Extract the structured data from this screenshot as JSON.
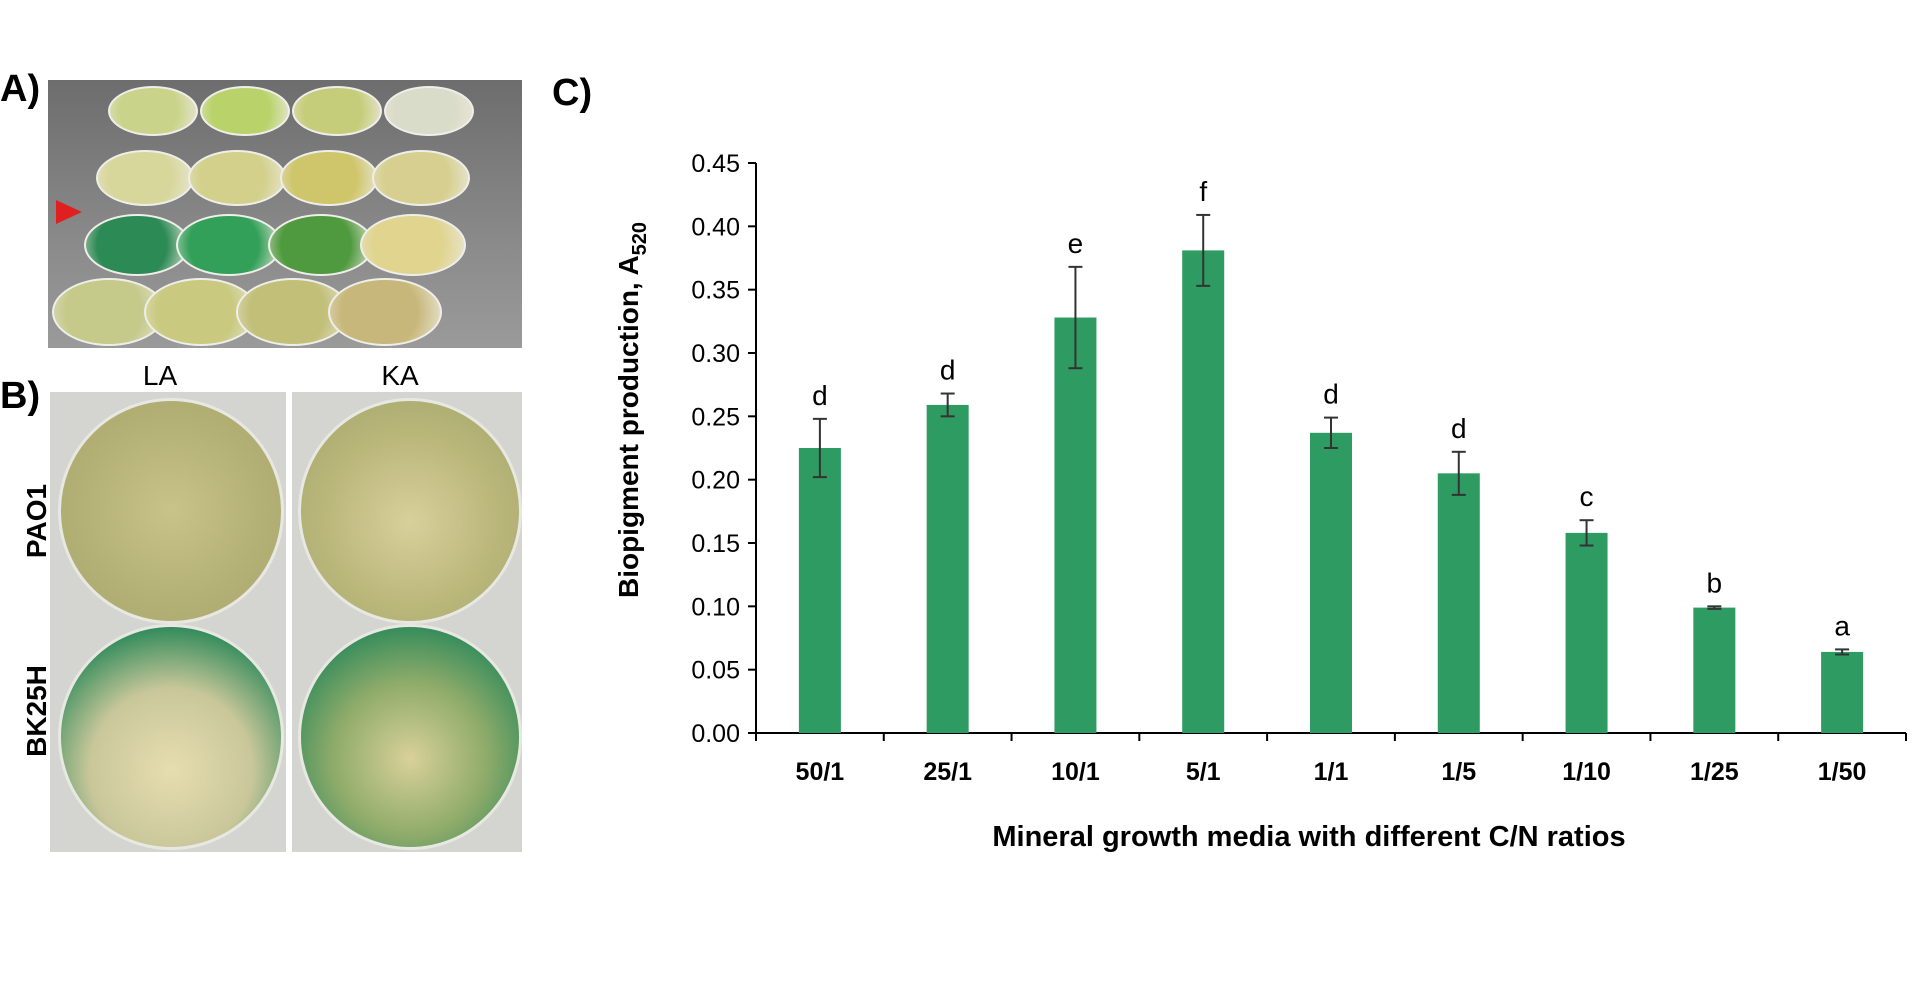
{
  "panel_a": {
    "label": "A)",
    "plate_rows": [
      {
        "colors": [
          "#c9d48a",
          "#b9d36a",
          "#c6cd7a",
          "#d9dcc8"
        ]
      },
      {
        "colors": [
          "#d7d79b",
          "#d2d08a",
          "#cfc56a",
          "#d6cf8f"
        ]
      },
      {
        "colors": [
          "#2c8a55",
          "#33a05a",
          "#4f9a3f",
          "#e0d48e"
        ]
      },
      {
        "colors": [
          "#c5c98a",
          "#c9c97f",
          "#c2bf79",
          "#c8b77a"
        ]
      }
    ],
    "arrow_color": "#e02020"
  },
  "panel_b": {
    "label": "B)",
    "columns": [
      "LA",
      "KA"
    ],
    "rows": [
      "PAO1",
      "BK25H"
    ]
  },
  "panel_c": {
    "label": "C)"
  },
  "chart_data": {
    "type": "bar",
    "categories": [
      "50/1",
      "25/1",
      "10/1",
      "5/1",
      "1/1",
      "1/5",
      "1/10",
      "1/25",
      "1/50"
    ],
    "values": [
      0.225,
      0.259,
      0.328,
      0.381,
      0.237,
      0.205,
      0.158,
      0.099,
      0.064
    ],
    "errors": [
      0.023,
      0.009,
      0.04,
      0.028,
      0.012,
      0.017,
      0.01,
      0.001,
      0.002
    ],
    "significance_letters": [
      "d",
      "d",
      "e",
      "f",
      "d",
      "d",
      "c",
      "b",
      "a"
    ],
    "ylabel_main": "Biopigment production, A",
    "ylabel_subscript": "520",
    "xlabel": "Mineral growth media with different C/N ratios",
    "ylim": [
      0,
      0.45
    ],
    "yticks": [
      "0.00",
      "0.05",
      "0.10",
      "0.15",
      "0.20",
      "0.25",
      "0.30",
      "0.35",
      "0.40",
      "0.45"
    ],
    "bar_color": "#2e9b62",
    "grid": false
  }
}
